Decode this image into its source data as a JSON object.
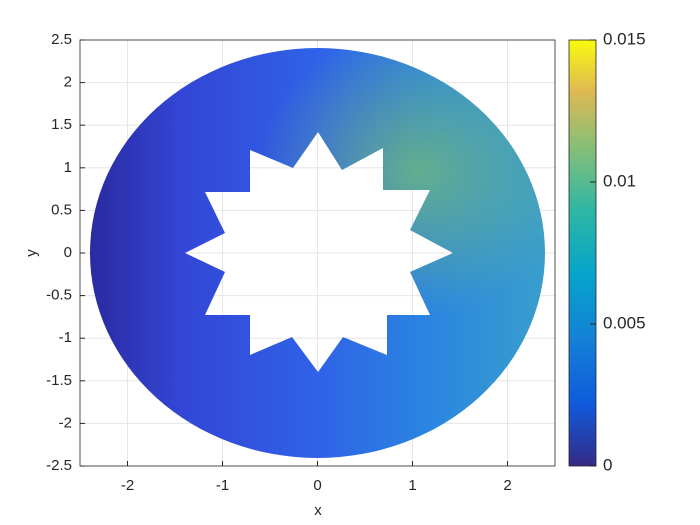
{
  "chart_data": {
    "type": "field",
    "xlabel": "x",
    "ylabel": "y",
    "xlim": [
      -2.5,
      2.5
    ],
    "xticks": [
      -2,
      -1,
      0,
      1,
      2
    ],
    "ylim": [
      -2.5,
      2.5
    ],
    "yticks": [
      -2.5,
      -2,
      -1.5,
      -1,
      -0.5,
      0,
      0.5,
      1,
      1.5,
      2,
      2.5
    ],
    "grid": true,
    "colormap": "parula",
    "clim": [
      0,
      0.015
    ],
    "cticks": [
      0,
      0.005,
      0.01,
      0.015
    ]
  }
}
